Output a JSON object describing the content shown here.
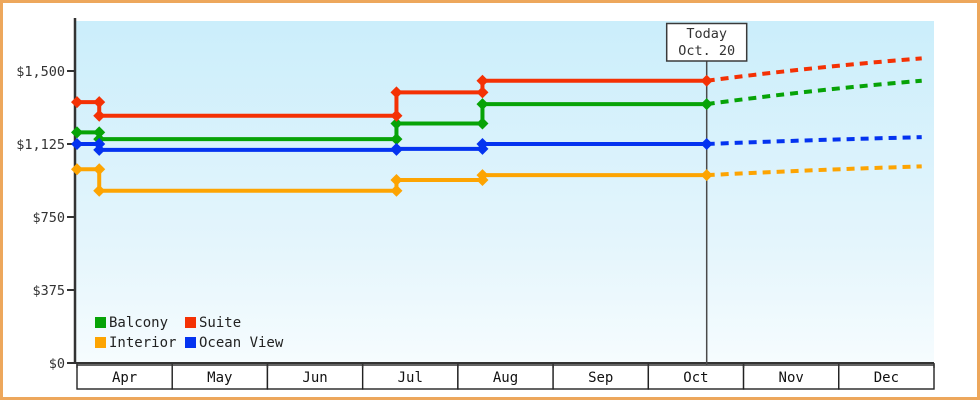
{
  "frame": {
    "border_color": "#eda75c",
    "background": "#ffffff"
  },
  "today_marker": {
    "label_line1": "Today",
    "label_line2": "Oct. 20",
    "date": "Oct 20",
    "line_color": "#4a4a4a",
    "box_border_color": "#3a3a3a",
    "box_fill": "#ffffff"
  },
  "y_axis": {
    "color": "#333333",
    "ticks": [
      {
        "value": 0,
        "label": "$0"
      },
      {
        "value": 375,
        "label": "$375"
      },
      {
        "value": 750,
        "label": "$750"
      },
      {
        "value": 1125,
        "label": "$1,125"
      },
      {
        "value": 1500,
        "label": "$1,500"
      }
    ]
  },
  "x_axis": {
    "months": [
      "Apr",
      "May",
      "Jun",
      "Jul",
      "Aug",
      "Sep",
      "Oct",
      "Nov",
      "Dec"
    ],
    "cell_border_color": "#222222"
  },
  "plot": {
    "bg_gradient_top": "#cbeefb",
    "bg_gradient_mid": "#e4f5fc",
    "bg_gradient_bottom": "#f6fcfe",
    "axis_color": "#333333"
  },
  "chart_data": {
    "type": "line",
    "subtype": "step-with-markers",
    "title": "",
    "xlabel": "",
    "ylabel": "",
    "ylim": [
      0,
      1500
    ],
    "y_tick_values": [
      0,
      375,
      750,
      1125,
      1500
    ],
    "x_categories": [
      "Apr",
      "May",
      "Jun",
      "Jul",
      "Aug",
      "Sep",
      "Oct",
      "Nov",
      "Dec"
    ],
    "grid": false,
    "legend_position": "bottom-left-inside",
    "today": "Oct 20",
    "note": "solid step lines up to today, dashed projection after today",
    "series": [
      {
        "name": "Balcony",
        "color": "#07a307",
        "points": [
          [
            "Apr 1",
            1185
          ],
          [
            "Apr 8",
            1150
          ],
          [
            "Jul 12",
            1230
          ],
          [
            "Aug 9",
            1330
          ],
          [
            "Oct 20",
            1330
          ]
        ],
        "projection_end": [
          "Dec 28",
          1450
        ]
      },
      {
        "name": "Suite",
        "color": "#f43104",
        "points": [
          [
            "Apr 1",
            1340
          ],
          [
            "Apr 8",
            1270
          ],
          [
            "Jul 12",
            1390
          ],
          [
            "Aug 9",
            1450
          ],
          [
            "Oct 20",
            1450
          ]
        ],
        "projection_end": [
          "Dec 28",
          1565
        ]
      },
      {
        "name": "Interior",
        "color": "#fda402",
        "points": [
          [
            "Apr 1",
            995
          ],
          [
            "Apr 8",
            885
          ],
          [
            "Jul 12",
            940
          ],
          [
            "Aug 9",
            965
          ],
          [
            "Oct 20",
            965
          ]
        ],
        "projection_end": [
          "Dec 28",
          1010
        ]
      },
      {
        "name": "Ocean View",
        "color": "#0433f0",
        "points": [
          [
            "Apr 1",
            1125
          ],
          [
            "Apr 8",
            1095
          ],
          [
            "Jul 12",
            1100
          ],
          [
            "Aug 9",
            1125
          ],
          [
            "Oct 20",
            1125
          ]
        ],
        "projection_end": [
          "Dec 28",
          1160
        ]
      }
    ]
  }
}
